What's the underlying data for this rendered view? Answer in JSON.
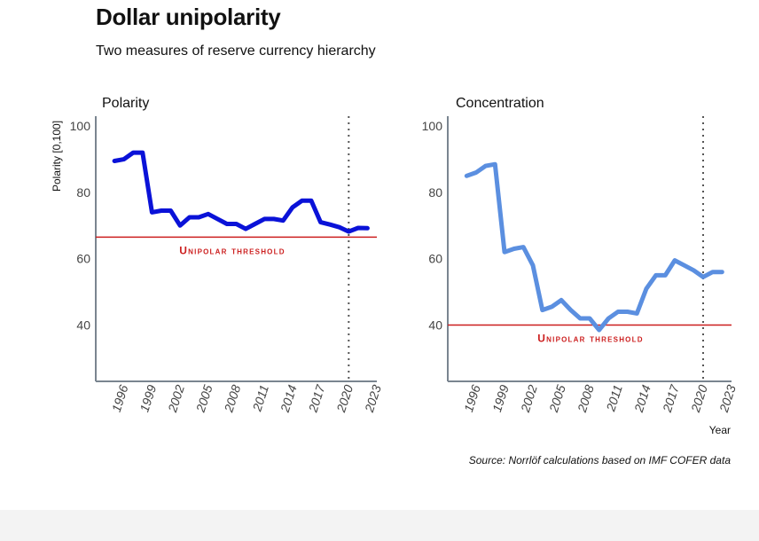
{
  "header": {
    "title": "Dollar unipolarity",
    "subtitle": "Two measures of reserve currency hierarchy"
  },
  "source": "Source: Norrlöf calculations based on IMF COFER data",
  "chart_data": [
    {
      "type": "line",
      "title": "Polarity",
      "xlabel": "",
      "ylabel": "Polarity [0,100]",
      "xlim": [
        1993,
        2023
      ],
      "ylim": [
        23,
        103
      ],
      "yticks": [
        40,
        60,
        80,
        100
      ],
      "xticks": [
        1996,
        1999,
        2002,
        2005,
        2008,
        2011,
        2014,
        2017,
        2020,
        2023
      ],
      "grid": false,
      "color": "#0a12d8",
      "series": [
        {
          "x": [
            1995,
            1996,
            1997,
            1998,
            1999,
            2000,
            2001,
            2002,
            2003,
            2004,
            2005,
            2006,
            2007,
            2008,
            2009,
            2010,
            2011,
            2012,
            2013,
            2014,
            2015,
            2016,
            2017,
            2018,
            2019,
            2020,
            2021,
            2022
          ],
          "values": [
            89.5,
            90,
            92,
            92,
            74,
            74.5,
            74.5,
            70,
            72.5,
            72.5,
            73.5,
            72,
            70.5,
            70.5,
            69,
            70.5,
            72,
            72,
            71.5,
            75.5,
            77.5,
            77.5,
            71,
            70.3,
            69.5,
            68.2,
            69.3,
            69.2
          ]
        }
      ],
      "threshold": {
        "value": 66.5,
        "label": "Unipolar threshold",
        "color": "#cc1f1f"
      },
      "vline": 2020
    },
    {
      "type": "line",
      "title": "Concentration",
      "xlabel": "Year",
      "ylabel": "",
      "xlim": [
        1993,
        2023
      ],
      "ylim": [
        23,
        103
      ],
      "yticks": [
        40,
        60,
        80,
        100
      ],
      "xticks": [
        1996,
        1999,
        2002,
        2005,
        2008,
        2011,
        2014,
        2017,
        2020,
        2023
      ],
      "grid": false,
      "color": "#5b8fe0",
      "series": [
        {
          "x": [
            1995,
            1996,
            1997,
            1998,
            1999,
            2000,
            2001,
            2002,
            2003,
            2004,
            2005,
            2006,
            2007,
            2008,
            2009,
            2010,
            2011,
            2012,
            2013,
            2014,
            2015,
            2016,
            2017,
            2018,
            2019,
            2020,
            2021,
            2022
          ],
          "values": [
            85,
            86,
            88,
            88.5,
            62,
            63,
            63.5,
            58,
            44.5,
            45.5,
            47.5,
            44.5,
            42,
            42,
            38.5,
            42,
            44,
            44,
            43.5,
            51,
            55,
            55,
            59.5,
            58,
            56.5,
            54.5,
            56,
            56
          ]
        }
      ],
      "threshold": {
        "value": 40,
        "label": "Unipolar threshold",
        "color": "#cc1f1f"
      },
      "vline": 2020
    }
  ]
}
